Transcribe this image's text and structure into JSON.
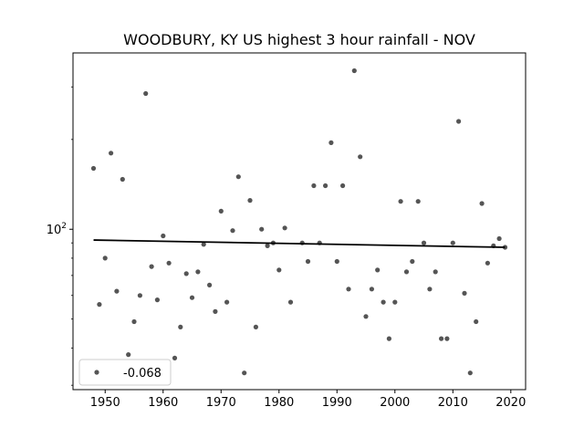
{
  "chart_data": {
    "type": "scatter",
    "title": "WOODBURY, KY US highest 3 hour rainfall - NOV",
    "xlabel": "",
    "ylabel": "",
    "xlim": [
      1944.45,
      2022.55
    ],
    "ylim": [
      29,
      390
    ],
    "yscale": "log",
    "grid": false,
    "x_ticks": [
      1950,
      1960,
      1970,
      1980,
      1990,
      2000,
      2010,
      2020
    ],
    "y_ticks": [
      {
        "value": 100,
        "base": "10",
        "exp": "2"
      }
    ],
    "legend": {
      "placement": "lower-left",
      "label": "-0.068"
    },
    "colors": {
      "points": "#555555",
      "trend": "#000000"
    },
    "series": [
      {
        "x": [
          1948,
          1949,
          1950,
          1951,
          1952,
          1953,
          1954,
          1955,
          1956,
          1957,
          1958,
          1959,
          1960,
          1961,
          1962,
          1963,
          1964,
          1965,
          1966,
          1967,
          1968,
          1969,
          1970,
          1971,
          1972,
          1973,
          1974,
          1975,
          1976,
          1977,
          1978,
          1979,
          1980,
          1981,
          1982,
          1984,
          1985,
          1986,
          1987,
          1988,
          1989,
          1990,
          1991,
          1992,
          1993,
          1994,
          1995,
          1996,
          1997,
          1998,
          1999,
          2000,
          2001,
          2002,
          2003,
          2004,
          2005,
          2006,
          2007,
          2008,
          2009,
          2010,
          2011,
          2012,
          2013,
          2014,
          2015,
          2016,
          2017,
          2018,
          2019
        ],
        "y": [
          160,
          56,
          80,
          180,
          62,
          147,
          38,
          49,
          60,
          285,
          75,
          58,
          95,
          77,
          37,
          47,
          71,
          59,
          72,
          89,
          65,
          53,
          115,
          57,
          99,
          150,
          33,
          125,
          47,
          100,
          88,
          90,
          73,
          101,
          57,
          90,
          78,
          140,
          90,
          140,
          195,
          78,
          140,
          63,
          340,
          175,
          51,
          63,
          73,
          57,
          43,
          57,
          124,
          72,
          78,
          124,
          90,
          63,
          72,
          43,
          43,
          90,
          230,
          61,
          33,
          49,
          122,
          77,
          88,
          93,
          87
        ]
      }
    ],
    "trend": {
      "x": [
        1948,
        2019
      ],
      "y": [
        92,
        87
      ]
    }
  }
}
